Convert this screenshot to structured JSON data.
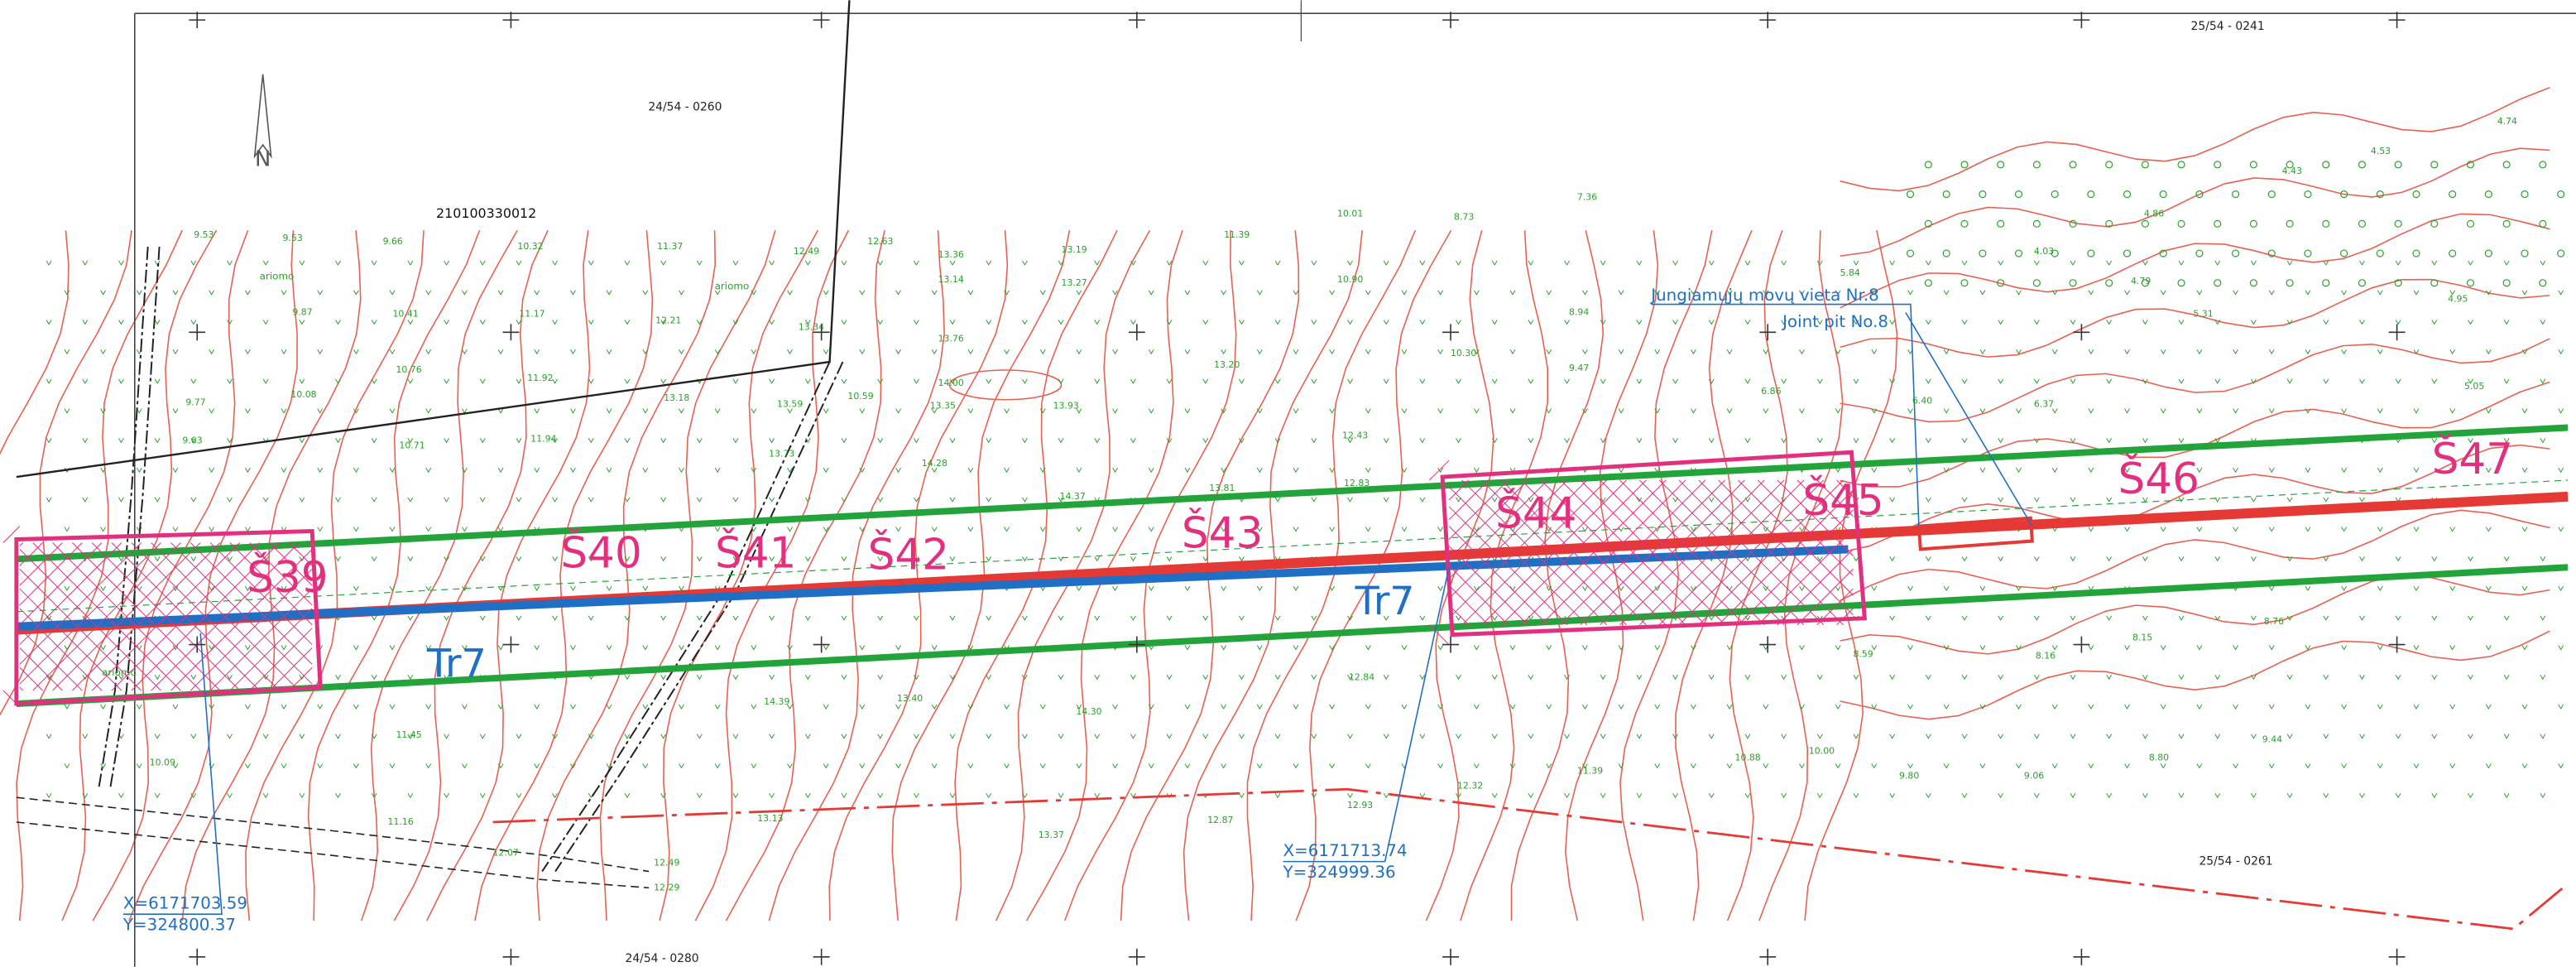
{
  "sheets": [
    "24/54 - 0260",
    "25/54 - 0241",
    "25/54 - 0261",
    "24/54 - 0280"
  ],
  "parcel": "210100330012",
  "north": "N",
  "pits": [
    "Š39",
    "Š40",
    "Š41",
    "Š42",
    "Š43",
    "Š44",
    "Š45",
    "Š46",
    "Š47"
  ],
  "line_labels": [
    "Tr7",
    "Tr7"
  ],
  "joint_pit": {
    "lt": "Jungiamųjų movų vieta Nr.8",
    "en": "Joint pit No.8"
  },
  "coordinates": [
    {
      "x": "X=6171703.59",
      "y": "Y=324800.37"
    },
    {
      "x": "X=6171713.74",
      "y": "Y=324999.36"
    }
  ],
  "land_use": [
    "ariomo",
    "ariomo",
    "ariomo"
  ],
  "spot_heights": [
    "9.53",
    "9.53",
    "9.66",
    "10.32",
    "11.37",
    "12.49",
    "12.63",
    "13.36",
    "13.19",
    "13.14",
    "13.27",
    "11.39",
    "10.01",
    "8.73",
    "7.36",
    "9.87",
    "10.41",
    "11.17",
    "12.21",
    "13.34",
    "13.76",
    "14.00",
    "13.35",
    "13.93",
    "13.20",
    "10.90",
    "8.94",
    "10.08",
    "10.76",
    "11.92",
    "13.18",
    "13.59",
    "10.59",
    "9.77",
    "9.63",
    "10.71",
    "11.94",
    "13.73",
    "14.28",
    "14.37",
    "13.81",
    "12.83",
    "12.43",
    "10.30",
    "9.47",
    "6.86",
    "6.40",
    "6.37",
    "5.84",
    "4.03",
    "4.79",
    "4.86",
    "4.43",
    "4.53",
    "4.74",
    "5.31",
    "4.95",
    "5.05",
    "14.39",
    "14.30",
    "13.40",
    "13.13",
    "13.37",
    "12.87",
    "12.93",
    "12.84",
    "12.32",
    "11.39",
    "10.88",
    "10.00",
    "9.80",
    "9.06",
    "8.80",
    "9.44",
    "8.59",
    "8.15",
    "8.76",
    "8.16",
    "11.45",
    "10.09",
    "11.16",
    "12.07",
    "12.49",
    "12.29"
  ]
}
